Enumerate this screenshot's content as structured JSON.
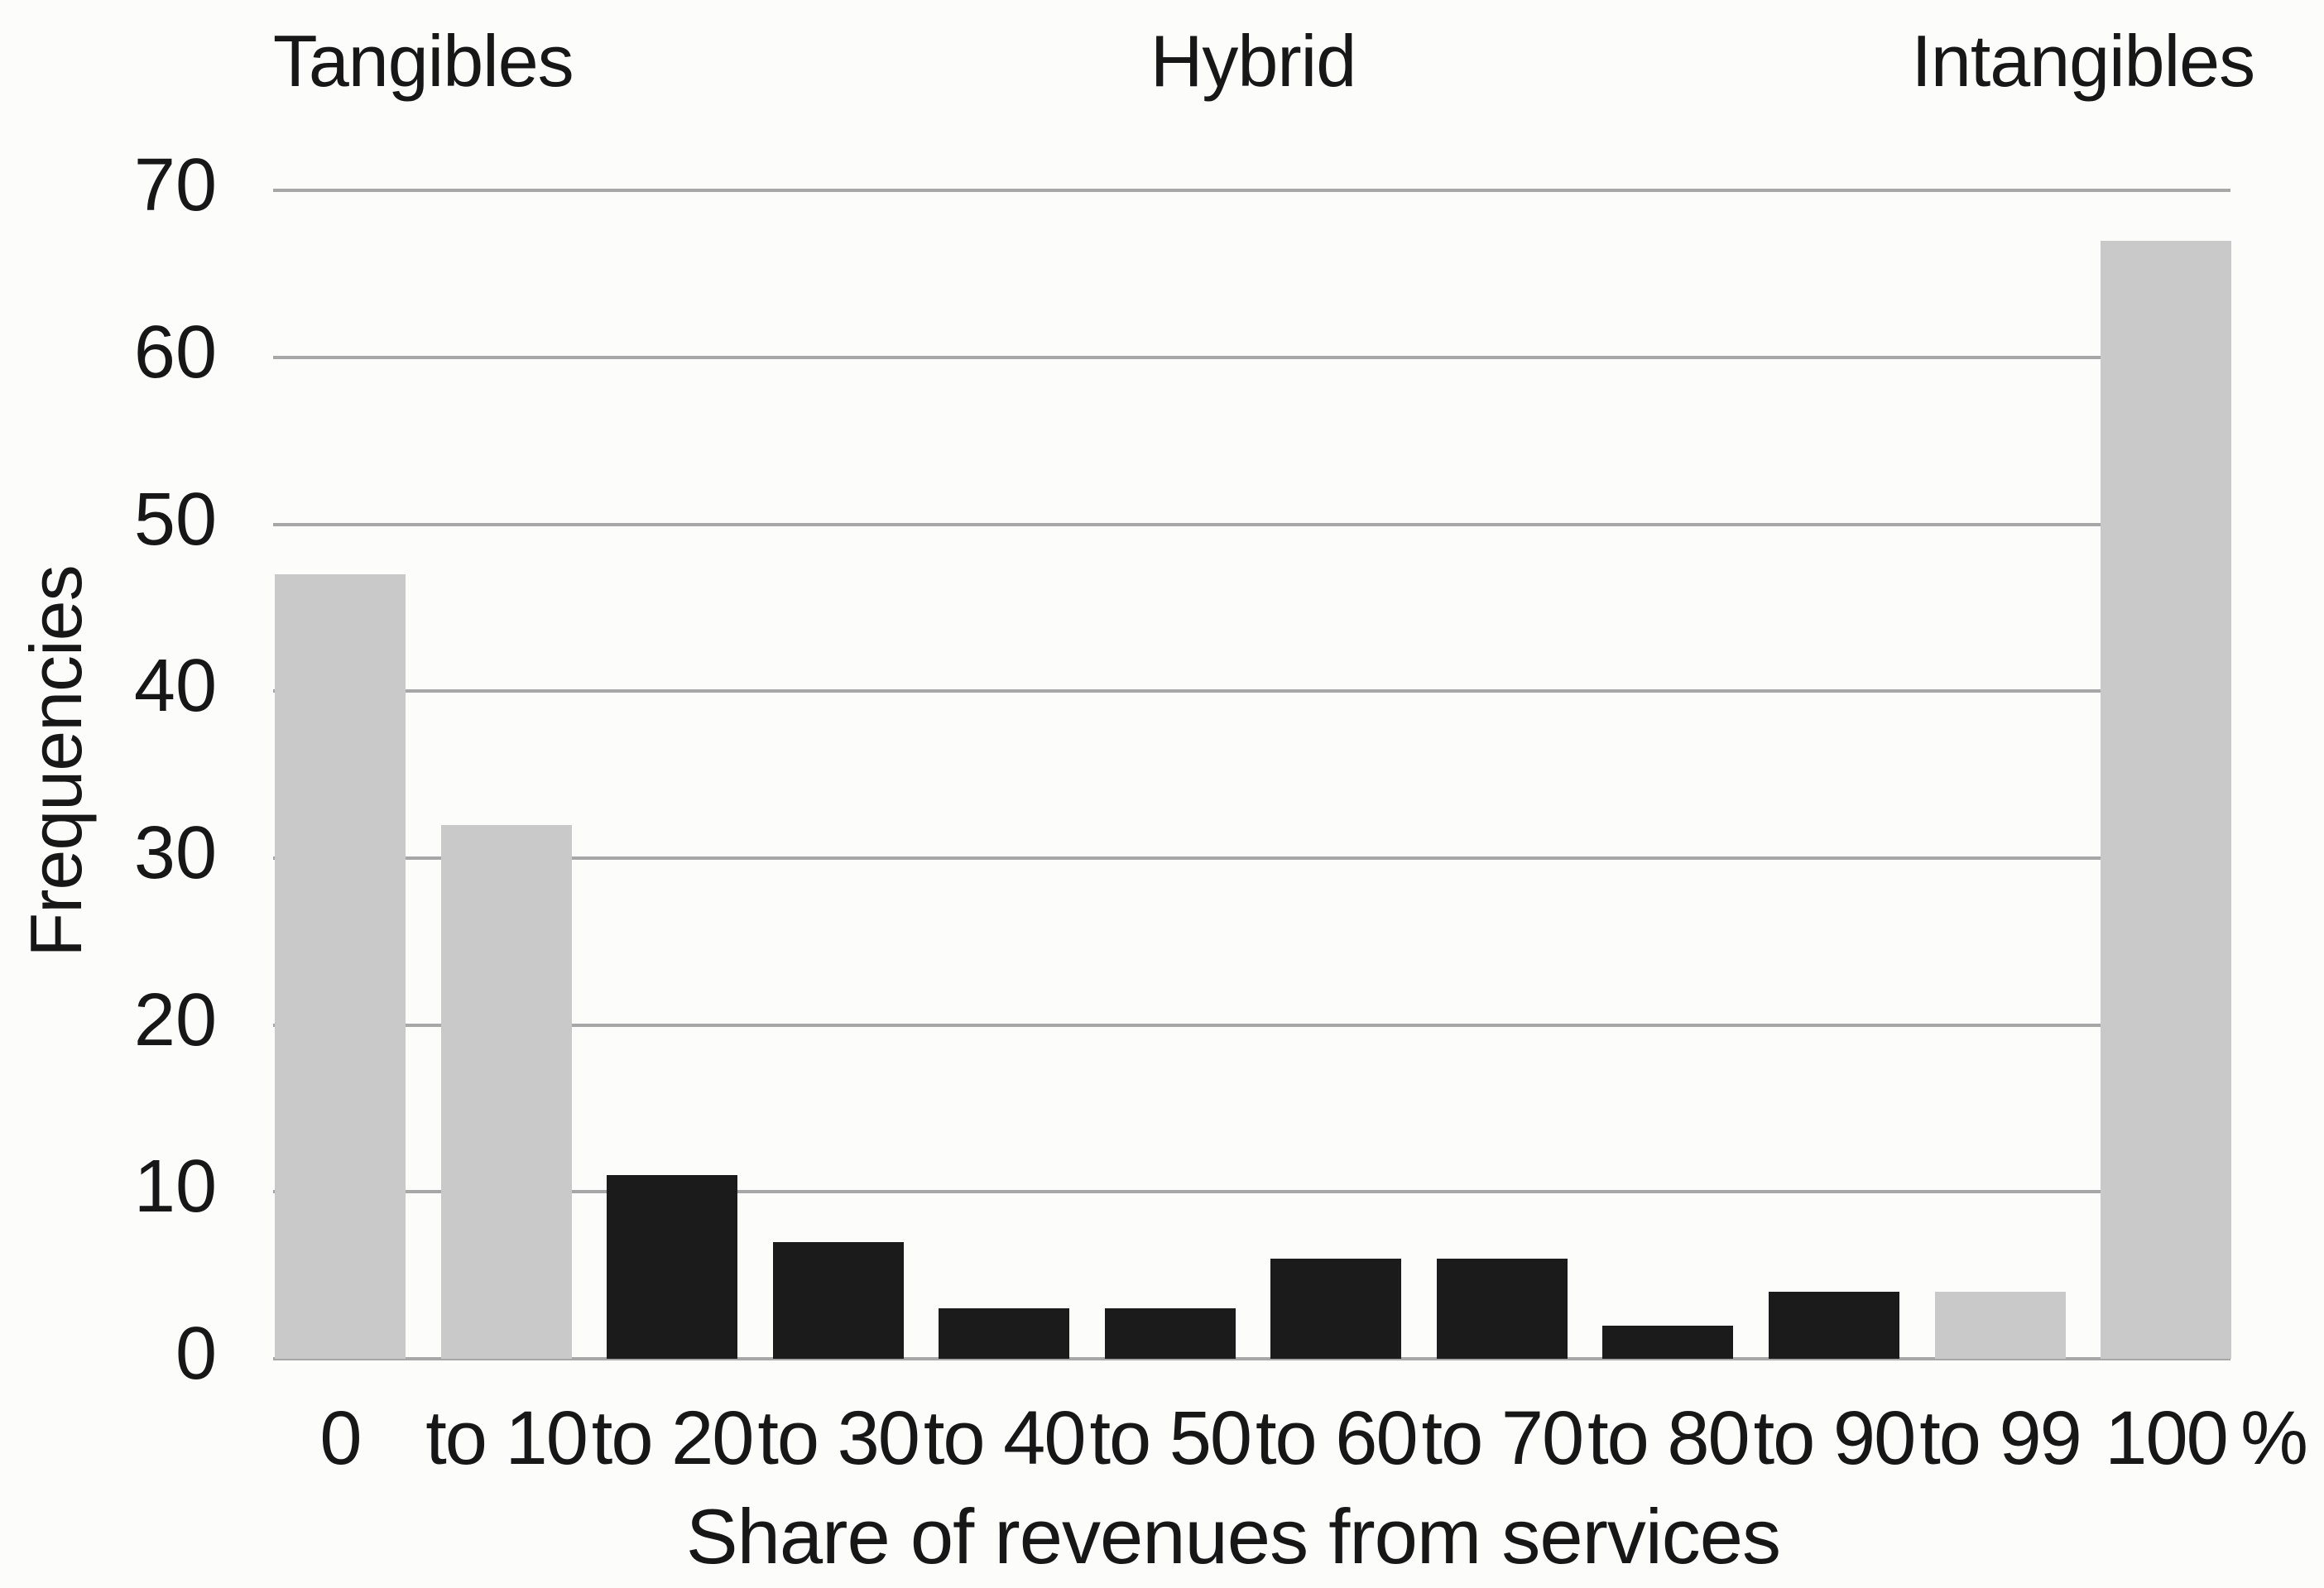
{
  "group_labels": [
    {
      "label": "Tangibles",
      "between_bars": [
        0,
        1
      ]
    },
    {
      "label": "Hybrid",
      "between_bars": [
        5,
        6
      ]
    },
    {
      "label": "Intangibles",
      "between_bars": [
        10,
        11
      ]
    }
  ],
  "y_axis": {
    "label": "Frequencies",
    "ticks": [
      0,
      10,
      20,
      30,
      40,
      50,
      60,
      70
    ]
  },
  "x_axis": {
    "label": "Share of revenues from services",
    "unit": "%"
  },
  "chart_data": {
    "type": "bar",
    "title": "",
    "categories": [
      "0",
      "to 10",
      "to 20",
      "to 30",
      "to 40",
      "to 50",
      "to 60",
      "to 70",
      "to 80",
      "to 90",
      "to 99",
      "100"
    ],
    "values": [
      47,
      32,
      11,
      7,
      3,
      3,
      6,
      6,
      2,
      4,
      4,
      67
    ],
    "bar_groups": [
      "tangibles",
      "tangibles",
      "hybrid",
      "hybrid",
      "hybrid",
      "hybrid",
      "hybrid",
      "hybrid",
      "hybrid",
      "hybrid",
      "intangibles",
      "intangibles"
    ],
    "group_colors": {
      "tangibles": "#c9c9c9",
      "hybrid": "#1b1b1b",
      "intangibles": "#c9c9c9"
    },
    "xlabel": "Share of revenues from services",
    "ylabel": "Frequencies",
    "ylim": [
      0,
      70
    ],
    "grid": true,
    "legend": false
  },
  "styles": {
    "gridline_color": "#a7a7a7",
    "text_color": "#171717",
    "background": "#fcfcfa"
  }
}
